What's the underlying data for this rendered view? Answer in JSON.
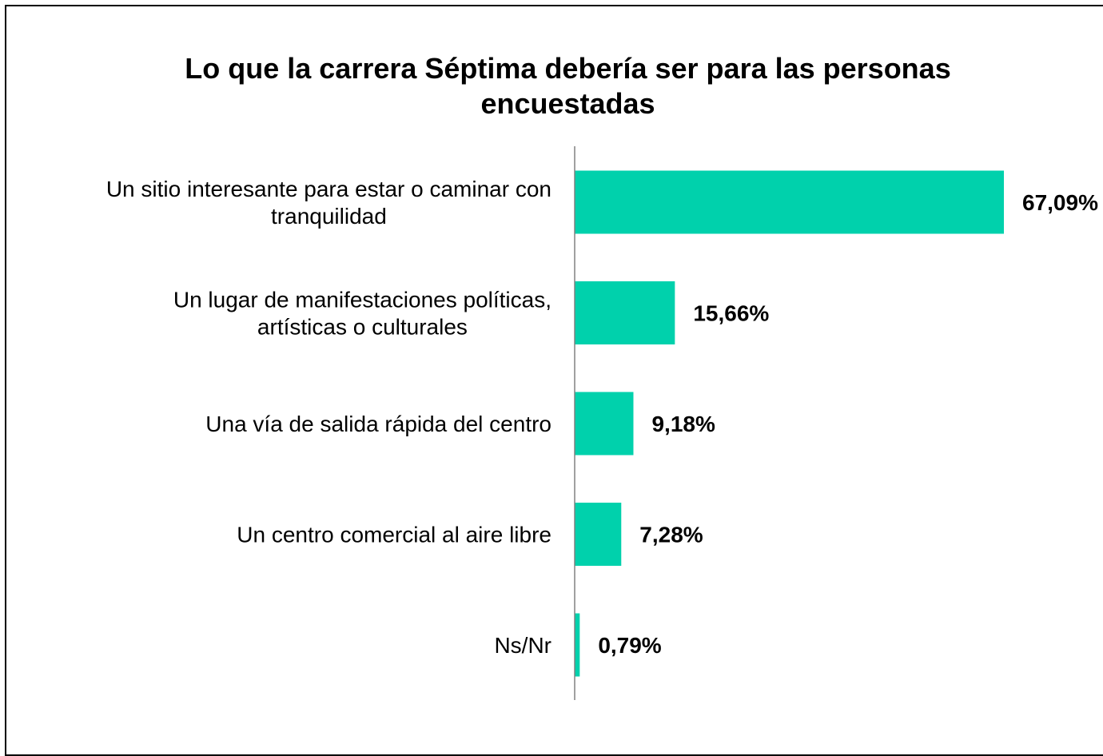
{
  "chart_data": {
    "type": "bar",
    "orientation": "horizontal",
    "title": "Lo que la carrera Séptima debería ser para las personas encuestadas",
    "categories": [
      "Un sitio interesante para estar o caminar con tranquilidad",
      "Un lugar de manifestaciones políticas, artísticas o culturales",
      "Una vía de salida rápida del centro",
      "Un centro comercial al aire libre",
      "Ns/Nr"
    ],
    "category_lines": [
      [
        "Un sitio interesante para estar o caminar con",
        "tranquilidad"
      ],
      [
        "Un lugar de manifestaciones políticas,",
        "artísticas o culturales"
      ],
      [
        "Una vía de salida rápida del centro"
      ],
      [
        "Un centro comercial al aire libre"
      ],
      [
        "Ns/Nr"
      ]
    ],
    "values": [
      67.09,
      15.66,
      9.18,
      7.28,
      0.79
    ],
    "value_labels": [
      "67,09%",
      "15,66%",
      "9,18%",
      "7,28%",
      "0,79%"
    ],
    "unit": "%",
    "bar_color": "#00D1AC",
    "axis_color": "#808080",
    "grid": false,
    "legend": "none"
  }
}
